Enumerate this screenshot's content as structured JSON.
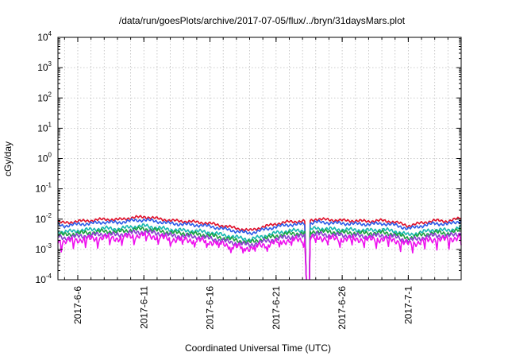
{
  "chart_data": {
    "type": "line",
    "title": "/data/run/goesPlots/archive/2017-07-05/flux/../bryn/31daysMars.plot",
    "xlabel": "Coordinated Universal Time (UTC)",
    "ylabel": "cGy/day",
    "log_y": true,
    "grid": true,
    "legend": "none",
    "xlim": [
      "2017-06-04T12:00",
      "2017-07-05T00:00"
    ],
    "ylim": [
      0.0001,
      10000
    ],
    "x_ticks": [
      "2017-6-6",
      "2017-6-11",
      "2017-6-16",
      "2017-6-21",
      "2017-6-26",
      "2017-7-1"
    ],
    "y_ticks": [
      {
        "base": "10",
        "exp": "-4",
        "value": 0.0001
      },
      {
        "base": "10",
        "exp": "-3",
        "value": 0.001
      },
      {
        "base": "10",
        "exp": "-2",
        "value": 0.01
      },
      {
        "base": "10",
        "exp": "-1",
        "value": 0.1
      },
      {
        "base": "10",
        "exp": "0",
        "value": 1
      },
      {
        "base": "10",
        "exp": "1",
        "value": 10
      },
      {
        "base": "10",
        "exp": "2",
        "value": 100
      },
      {
        "base": "10",
        "exp": "3",
        "value": 1000
      },
      {
        "base": "10",
        "exp": "4",
        "value": 10000
      }
    ],
    "data_gap": [
      "2017-06-23T04:00",
      "2017-06-23T14:00"
    ],
    "x": [
      "2017-06-04T12:00",
      "2017-06-05T00:00",
      "2017-06-06T00:00",
      "2017-06-07T00:00",
      "2017-06-08T00:00",
      "2017-06-09T00:00",
      "2017-06-10T00:00",
      "2017-06-11T00:00",
      "2017-06-12T00:00",
      "2017-06-13T00:00",
      "2017-06-14T00:00",
      "2017-06-15T00:00",
      "2017-06-16T00:00",
      "2017-06-17T00:00",
      "2017-06-18T00:00",
      "2017-06-19T00:00",
      "2017-06-20T00:00",
      "2017-06-21T00:00",
      "2017-06-22T00:00",
      "2017-06-23T00:00",
      "2017-06-23T14:00",
      "2017-06-24T00:00",
      "2017-06-25T00:00",
      "2017-06-26T00:00",
      "2017-06-27T00:00",
      "2017-06-28T00:00",
      "2017-06-29T00:00",
      "2017-06-30T00:00",
      "2017-07-01T00:00",
      "2017-07-02T00:00",
      "2017-07-03T00:00",
      "2017-07-04T00:00",
      "2017-07-05T00:00"
    ],
    "series": [
      {
        "color": "#e0102a",
        "values": [
          0.008,
          0.0075,
          0.0085,
          0.009,
          0.01,
          0.0095,
          0.011,
          0.012,
          0.0105,
          0.009,
          0.0085,
          0.008,
          0.0072,
          0.006,
          0.005,
          0.0042,
          0.0055,
          0.007,
          0.0082,
          0.0085,
          0.009,
          0.01,
          0.0095,
          0.009,
          0.0088,
          0.0085,
          0.009,
          0.008,
          0.006,
          0.0075,
          0.009,
          0.0085,
          0.011
        ]
      },
      {
        "color": "#2c5ce8",
        "values": [
          0.0065,
          0.006,
          0.0068,
          0.0072,
          0.008,
          0.0076,
          0.0088,
          0.0095,
          0.0084,
          0.0072,
          0.0068,
          0.0064,
          0.0058,
          0.0048,
          0.004,
          0.0034,
          0.0044,
          0.0056,
          0.0066,
          0.0068,
          0.0072,
          0.008,
          0.0076,
          0.0072,
          0.007,
          0.0068,
          0.0072,
          0.0064,
          0.0048,
          0.006,
          0.0072,
          0.0068,
          0.0088
        ]
      },
      {
        "color": "#16b8b0",
        "values": [
          0.004,
          0.0037,
          0.0042,
          0.0045,
          0.005,
          0.0047,
          0.0055,
          0.006,
          0.0052,
          0.0045,
          0.0042,
          0.004,
          0.0036,
          0.003,
          0.0025,
          0.0021,
          0.0027,
          0.0035,
          0.0041,
          0.0042,
          0.0045,
          0.005,
          0.0047,
          0.0045,
          0.0044,
          0.0042,
          0.0045,
          0.004,
          0.003,
          0.0037,
          0.0045,
          0.0042,
          0.0055
        ]
      },
      {
        "color": "#1aa040",
        "values": [
          0.0032,
          0.003,
          0.0034,
          0.0036,
          0.004,
          0.0038,
          0.0044,
          0.0048,
          0.0042,
          0.0036,
          0.0034,
          0.0032,
          0.0029,
          0.0024,
          0.002,
          0.0017,
          0.0022,
          0.0028,
          0.0033,
          0.0034,
          0.0036,
          0.004,
          0.0038,
          0.0036,
          0.0035,
          0.0034,
          0.0036,
          0.0032,
          0.0024,
          0.003,
          0.0036,
          0.0034,
          0.0044
        ]
      },
      {
        "color": "#8a3fcf",
        "values": [
          0.0026,
          0.0024,
          0.0027,
          0.0029,
          0.0032,
          0.003,
          0.0035,
          0.0038,
          0.0034,
          0.0029,
          0.0027,
          0.0026,
          0.0023,
          0.0019,
          0.0016,
          0.0014,
          0.0018,
          0.0022,
          0.0026,
          0.0027,
          0.0029,
          0.0032,
          0.003,
          0.0029,
          0.0028,
          0.0027,
          0.0029,
          0.0026,
          0.0019,
          0.0024,
          0.0029,
          0.0027,
          0.0035
        ]
      },
      {
        "color": "#ee10ee",
        "values": [
          0.002,
          0.0018,
          0.0021,
          0.0022,
          0.0025,
          0.0023,
          0.0027,
          0.003,
          0.0026,
          0.0022,
          0.0021,
          0.002,
          0.0018,
          0.0015,
          0.0012,
          0.0011,
          0.0014,
          0.0017,
          0.002,
          0.0021,
          0.0022,
          0.0025,
          0.0023,
          0.0022,
          0.0022,
          0.0021,
          0.0022,
          0.002,
          0.0015,
          0.0018,
          0.0022,
          0.0021,
          0.0027
        ]
      }
    ]
  }
}
